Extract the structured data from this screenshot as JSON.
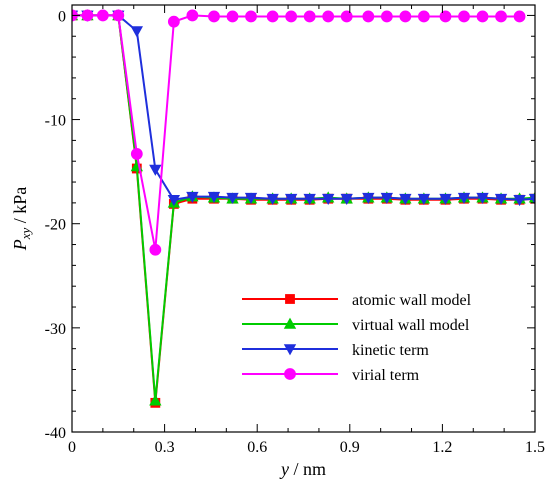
{
  "chart_data": {
    "type": "line",
    "title": "",
    "xlabel": {
      "symbol": "y",
      "unit": " / nm"
    },
    "ylabel": {
      "symbol": "P",
      "subscript": "xy",
      "unit": " / kPa"
    },
    "xlim": [
      0,
      1.5
    ],
    "ylim": [
      -40,
      1
    ],
    "xticks": [
      0,
      0.3,
      0.6,
      0.9,
      1.2,
      1.5
    ],
    "xtick_labels": [
      "0",
      "0.3",
      "0.6",
      "0.9",
      "1.2",
      "1.5"
    ],
    "yticks": [
      0,
      -10,
      -20,
      -30,
      -40
    ],
    "ytick_labels": [
      "0",
      "-10",
      "-20",
      "-30",
      "-40"
    ],
    "grid": false,
    "legend_position": "lower-right",
    "series": [
      {
        "name": "atomic wall model",
        "color": "#ff0000",
        "marker": "square",
        "x": [
          0.0,
          0.05,
          0.15,
          0.21,
          0.27,
          0.33,
          0.39,
          0.46,
          0.52,
          0.58,
          0.65,
          0.71,
          0.77,
          0.83,
          0.89,
          0.96,
          1.02,
          1.08,
          1.14,
          1.21,
          1.27,
          1.33,
          1.39,
          1.45,
          1.5
        ],
        "y": [
          0,
          0,
          0,
          -14.7,
          -37.2,
          -18.1,
          -17.6,
          -17.6,
          -17.6,
          -17.7,
          -17.7,
          -17.7,
          -17.7,
          -17.6,
          -17.6,
          -17.6,
          -17.6,
          -17.7,
          -17.7,
          -17.7,
          -17.6,
          -17.6,
          -17.7,
          -17.7,
          -17.6
        ]
      },
      {
        "name": "virtual wall model",
        "color": "#00cc00",
        "marker": "triangle-up",
        "x": [
          0.0,
          0.05,
          0.15,
          0.21,
          0.27,
          0.33,
          0.39,
          0.46,
          0.52,
          0.58,
          0.65,
          0.71,
          0.77,
          0.83,
          0.89,
          0.96,
          1.02,
          1.08,
          1.14,
          1.21,
          1.27,
          1.33,
          1.39,
          1.45,
          1.5
        ],
        "y": [
          0,
          0,
          0,
          -14.5,
          -37.0,
          -18.0,
          -17.4,
          -17.5,
          -17.6,
          -17.6,
          -17.6,
          -17.6,
          -17.6,
          -17.5,
          -17.6,
          -17.5,
          -17.5,
          -17.6,
          -17.6,
          -17.6,
          -17.5,
          -17.5,
          -17.6,
          -17.6,
          -17.5
        ]
      },
      {
        "name": "kinetic term",
        "color": "#1f2fdc",
        "marker": "triangle-down",
        "x": [
          0.0,
          0.05,
          0.15,
          0.21,
          0.27,
          0.33,
          0.39,
          0.46,
          0.52,
          0.58,
          0.65,
          0.71,
          0.77,
          0.83,
          0.89,
          0.96,
          1.02,
          1.08,
          1.14,
          1.21,
          1.27,
          1.33,
          1.39,
          1.45,
          1.5
        ],
        "y": [
          0,
          0,
          0,
          -1.5,
          -14.8,
          -17.7,
          -17.4,
          -17.4,
          -17.5,
          -17.5,
          -17.6,
          -17.6,
          -17.6,
          -17.6,
          -17.6,
          -17.5,
          -17.5,
          -17.6,
          -17.6,
          -17.6,
          -17.5,
          -17.5,
          -17.6,
          -17.7,
          -17.6
        ]
      },
      {
        "name": "virial term",
        "color": "#ff00ff",
        "marker": "circle",
        "x": [
          0.0,
          0.05,
          0.1,
          0.15,
          0.21,
          0.27,
          0.33,
          0.39,
          0.46,
          0.52,
          0.58,
          0.65,
          0.71,
          0.77,
          0.83,
          0.89,
          0.96,
          1.02,
          1.08,
          1.14,
          1.21,
          1.27,
          1.33,
          1.39,
          1.45
        ],
        "y": [
          0,
          0,
          0,
          0,
          -13.3,
          -22.5,
          -0.6,
          0,
          -0.1,
          -0.1,
          -0.1,
          -0.1,
          -0.1,
          -0.1,
          -0.1,
          -0.1,
          -0.1,
          -0.1,
          -0.1,
          -0.1,
          -0.1,
          -0.1,
          -0.1,
          -0.1,
          -0.1
        ]
      }
    ]
  }
}
